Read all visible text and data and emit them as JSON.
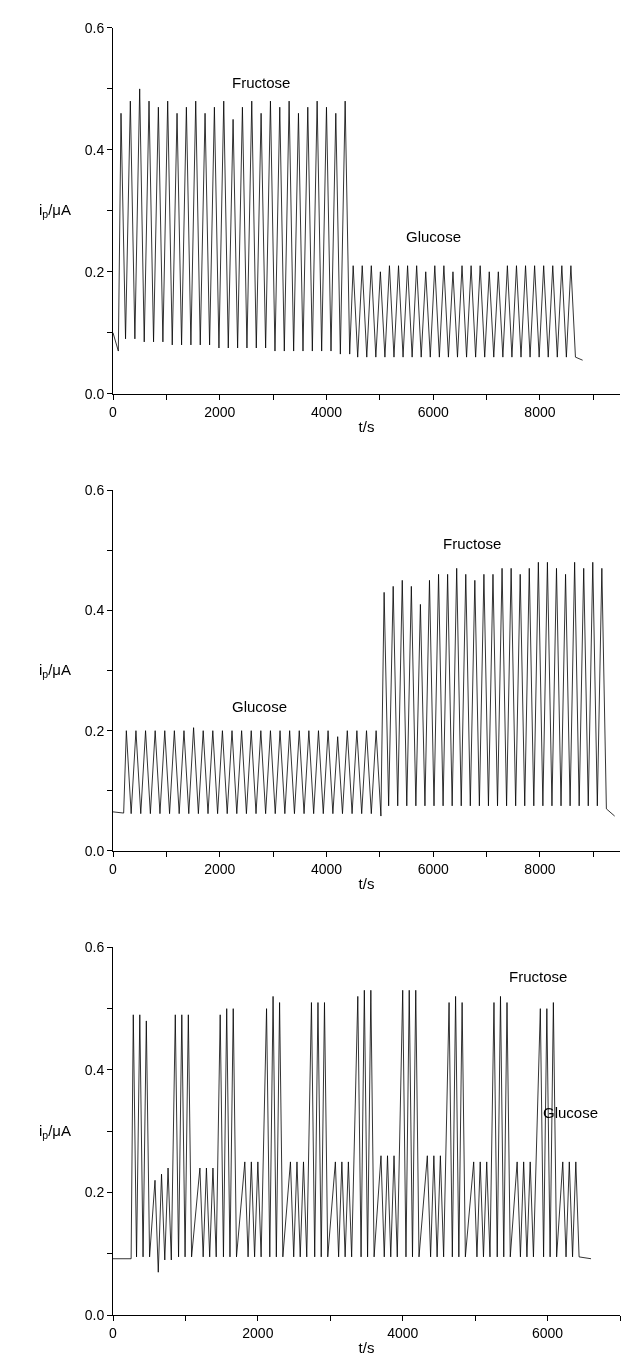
{
  "chart_data": [
    {
      "type": "line",
      "xlabel": "t/s",
      "ylabel": "i$_{p}$/μA",
      "xlim": [
        0,
        9500
      ],
      "ylim": [
        0,
        0.6
      ],
      "xticks": [
        0,
        {
          "value": 1000,
          "label": null
        },
        2000,
        {
          "value": 3000,
          "label": null
        },
        4000,
        {
          "value": 5000,
          "label": null
        },
        6000,
        {
          "value": 7000,
          "label": null
        },
        8000,
        {
          "value": 9000,
          "label": null
        }
      ],
      "yticks": [
        {
          "value": 0,
          "label": "0.0"
        },
        {
          "value": 0.1,
          "label": null
        },
        0.2,
        {
          "value": 0.3,
          "label": null
        },
        0.4,
        {
          "value": 0.5,
          "label": null
        },
        0.6
      ],
      "annotations": [
        "Fructose",
        "Glucose"
      ],
      "x": [
        0,
        100,
        150,
        235,
        325,
        410,
        500,
        585,
        675,
        760,
        850,
        935,
        1025,
        1110,
        1200,
        1285,
        1375,
        1460,
        1550,
        1635,
        1725,
        1810,
        1900,
        1985,
        2075,
        2160,
        2250,
        2335,
        2425,
        2510,
        2600,
        2685,
        2775,
        2860,
        2950,
        3035,
        3125,
        3210,
        3300,
        3385,
        3475,
        3560,
        3650,
        3735,
        3825,
        3910,
        4000,
        4085,
        4175,
        4260,
        4350,
        4435,
        4500,
        4585,
        4670,
        4755,
        4840,
        4925,
        5010,
        5095,
        5180,
        5265,
        5350,
        5435,
        5520,
        5605,
        5690,
        5775,
        5860,
        5945,
        6030,
        6115,
        6200,
        6285,
        6370,
        6455,
        6540,
        6625,
        6710,
        6795,
        6880,
        6965,
        7050,
        7135,
        7220,
        7305,
        7390,
        7475,
        7560,
        7645,
        7730,
        7815,
        7900,
        7985,
        8070,
        8155,
        8240,
        8325,
        8410,
        8495,
        8580,
        8665,
        8800
      ],
      "series": [
        {
          "color": "#000000",
          "values": [
            0.1,
            0.07,
            0.46,
            0.09,
            0.48,
            0.09,
            0.5,
            0.085,
            0.48,
            0.085,
            0.47,
            0.085,
            0.48,
            0.08,
            0.46,
            0.08,
            0.47,
            0.08,
            0.48,
            0.08,
            0.46,
            0.08,
            0.47,
            0.075,
            0.48,
            0.075,
            0.45,
            0.075,
            0.47,
            0.075,
            0.48,
            0.075,
            0.46,
            0.075,
            0.48,
            0.07,
            0.47,
            0.07,
            0.48,
            0.07,
            0.46,
            0.07,
            0.47,
            0.07,
            0.48,
            0.07,
            0.47,
            0.07,
            0.46,
            0.065,
            0.48,
            0.065,
            0.21,
            0.06,
            0.21,
            0.06,
            0.21,
            0.06,
            0.2,
            0.06,
            0.21,
            0.06,
            0.21,
            0.06,
            0.21,
            0.06,
            0.21,
            0.06,
            0.2,
            0.06,
            0.21,
            0.06,
            0.21,
            0.06,
            0.2,
            0.06,
            0.21,
            0.06,
            0.21,
            0.06,
            0.21,
            0.06,
            0.2,
            0.06,
            0.2,
            0.06,
            0.21,
            0.06,
            0.21,
            0.06,
            0.21,
            0.06,
            0.21,
            0.06,
            0.21,
            0.06,
            0.21,
            0.06,
            0.21,
            0.06,
            0.21,
            0.06,
            0.055
          ]
        }
      ]
    },
    {
      "type": "line",
      "xlabel": "t/s",
      "ylabel": "i$_{p}$/μA",
      "xlim": [
        0,
        9500
      ],
      "ylim": [
        0,
        0.6
      ],
      "xticks": [
        0,
        {
          "value": 1000,
          "label": null
        },
        2000,
        {
          "value": 3000,
          "label": null
        },
        4000,
        {
          "value": 5000,
          "label": null
        },
        6000,
        {
          "value": 7000,
          "label": null
        },
        8000,
        {
          "value": 9000,
          "label": null
        }
      ],
      "yticks": [
        {
          "value": 0,
          "label": "0.0"
        },
        {
          "value": 0.1,
          "label": null
        },
        0.2,
        {
          "value": 0.3,
          "label": null
        },
        0.4,
        {
          "value": 0.5,
          "label": null
        },
        0.6
      ],
      "annotations": [
        "Glucose",
        "Fructose"
      ],
      "x": [
        0,
        200,
        250,
        340,
        430,
        520,
        610,
        700,
        790,
        880,
        970,
        1060,
        1150,
        1240,
        1330,
        1420,
        1510,
        1600,
        1690,
        1780,
        1870,
        1960,
        2050,
        2140,
        2230,
        2320,
        2410,
        2500,
        2590,
        2680,
        2770,
        2860,
        2950,
        3040,
        3130,
        3220,
        3310,
        3400,
        3490,
        3580,
        3670,
        3760,
        3850,
        3940,
        4030,
        4120,
        4210,
        4300,
        4390,
        4480,
        4570,
        4660,
        4750,
        4840,
        4930,
        5020,
        5080,
        5165,
        5250,
        5335,
        5420,
        5505,
        5590,
        5675,
        5760,
        5845,
        5930,
        6015,
        6100,
        6185,
        6270,
        6355,
        6440,
        6525,
        6610,
        6695,
        6780,
        6865,
        6950,
        7035,
        7120,
        7205,
        7290,
        7375,
        7460,
        7545,
        7630,
        7715,
        7800,
        7885,
        7970,
        8055,
        8140,
        8225,
        8310,
        8395,
        8480,
        8565,
        8650,
        8735,
        8820,
        8905,
        8990,
        9075,
        9160,
        9245,
        9400
      ],
      "series": [
        {
          "color": "#000000",
          "values": [
            0.065,
            0.063,
            0.2,
            0.062,
            0.2,
            0.062,
            0.2,
            0.062,
            0.2,
            0.062,
            0.2,
            0.062,
            0.2,
            0.062,
            0.2,
            0.062,
            0.205,
            0.062,
            0.2,
            0.062,
            0.2,
            0.062,
            0.2,
            0.062,
            0.2,
            0.062,
            0.2,
            0.062,
            0.2,
            0.062,
            0.2,
            0.062,
            0.2,
            0.062,
            0.2,
            0.062,
            0.2,
            0.062,
            0.2,
            0.062,
            0.2,
            0.062,
            0.2,
            0.062,
            0.2,
            0.062,
            0.19,
            0.062,
            0.2,
            0.062,
            0.2,
            0.062,
            0.2,
            0.062,
            0.2,
            0.058,
            0.43,
            0.075,
            0.44,
            0.075,
            0.45,
            0.075,
            0.44,
            0.075,
            0.41,
            0.075,
            0.45,
            0.075,
            0.46,
            0.075,
            0.46,
            0.075,
            0.47,
            0.075,
            0.46,
            0.075,
            0.45,
            0.075,
            0.46,
            0.075,
            0.46,
            0.075,
            0.47,
            0.075,
            0.47,
            0.075,
            0.46,
            0.075,
            0.47,
            0.075,
            0.48,
            0.075,
            0.48,
            0.075,
            0.47,
            0.075,
            0.46,
            0.075,
            0.48,
            0.075,
            0.47,
            0.075,
            0.48,
            0.075,
            0.47,
            0.07,
            0.058
          ]
        }
      ]
    },
    {
      "type": "line",
      "xlabel": "t/s",
      "ylabel": "i$_{p}$/μA",
      "xlim": [
        0,
        7000
      ],
      "ylim": [
        0,
        0.6
      ],
      "xticks": [
        0,
        {
          "value": 1000,
          "label": null
        },
        2000,
        {
          "value": 3000,
          "label": null
        },
        4000,
        {
          "value": 5000,
          "label": null
        },
        6000,
        {
          "value": 7000,
          "label": null
        }
      ],
      "yticks": [
        {
          "value": 0,
          "label": "0.0"
        },
        {
          "value": 0.1,
          "label": null
        },
        0.2,
        {
          "value": 0.3,
          "label": null
        },
        0.4,
        {
          "value": 0.5,
          "label": null
        },
        0.6
      ],
      "annotations": [
        "Fructose",
        "Glucose"
      ],
      "x": [
        0,
        250,
        280,
        325,
        370,
        415,
        460,
        505,
        580,
        625,
        670,
        715,
        760,
        805,
        860,
        905,
        950,
        995,
        1040,
        1085,
        1200,
        1245,
        1290,
        1335,
        1380,
        1425,
        1480,
        1525,
        1570,
        1615,
        1660,
        1705,
        1820,
        1865,
        1910,
        1955,
        2000,
        2045,
        2120,
        2165,
        2210,
        2255,
        2300,
        2345,
        2450,
        2495,
        2540,
        2585,
        2630,
        2675,
        2740,
        2785,
        2830,
        2875,
        2920,
        2965,
        3070,
        3115,
        3160,
        3205,
        3250,
        3295,
        3380,
        3425,
        3470,
        3515,
        3560,
        3605,
        3700,
        3745,
        3790,
        3835,
        3880,
        3925,
        4000,
        4045,
        4090,
        4135,
        4180,
        4225,
        4340,
        4385,
        4430,
        4475,
        4520,
        4565,
        4640,
        4685,
        4730,
        4775,
        4820,
        4865,
        4980,
        5025,
        5070,
        5115,
        5160,
        5205,
        5260,
        5305,
        5350,
        5395,
        5440,
        5485,
        5580,
        5625,
        5670,
        5715,
        5760,
        5805,
        5900,
        5945,
        5990,
        6035,
        6080,
        6125,
        6210,
        6255,
        6300,
        6345,
        6390,
        6435,
        6600
      ],
      "series": [
        {
          "color": "#000000",
          "values": [
            0.092,
            0.092,
            0.49,
            0.095,
            0.49,
            0.095,
            0.48,
            0.095,
            0.22,
            0.07,
            0.23,
            0.09,
            0.24,
            0.09,
            0.49,
            0.095,
            0.49,
            0.095,
            0.49,
            0.095,
            0.24,
            0.095,
            0.24,
            0.095,
            0.24,
            0.095,
            0.49,
            0.095,
            0.5,
            0.095,
            0.5,
            0.095,
            0.25,
            0.095,
            0.25,
            0.095,
            0.25,
            0.095,
            0.5,
            0.095,
            0.52,
            0.095,
            0.51,
            0.095,
            0.25,
            0.095,
            0.25,
            0.095,
            0.25,
            0.095,
            0.51,
            0.095,
            0.51,
            0.095,
            0.51,
            0.095,
            0.25,
            0.095,
            0.25,
            0.095,
            0.25,
            0.095,
            0.52,
            0.095,
            0.53,
            0.095,
            0.53,
            0.095,
            0.26,
            0.095,
            0.26,
            0.095,
            0.26,
            0.095,
            0.53,
            0.095,
            0.53,
            0.095,
            0.53,
            0.095,
            0.26,
            0.095,
            0.26,
            0.095,
            0.26,
            0.095,
            0.51,
            0.095,
            0.52,
            0.095,
            0.51,
            0.095,
            0.25,
            0.095,
            0.25,
            0.095,
            0.25,
            0.095,
            0.51,
            0.095,
            0.52,
            0.095,
            0.51,
            0.095,
            0.25,
            0.095,
            0.25,
            0.095,
            0.25,
            0.095,
            0.5,
            0.095,
            0.5,
            0.095,
            0.51,
            0.095,
            0.25,
            0.095,
            0.25,
            0.095,
            0.25,
            0.095,
            0.092
          ]
        }
      ]
    }
  ]
}
